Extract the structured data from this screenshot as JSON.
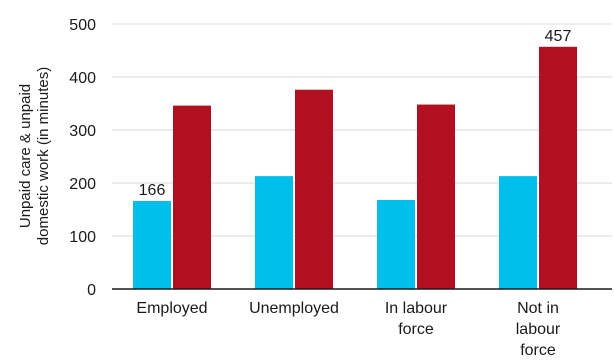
{
  "chart_data": {
    "type": "bar",
    "title": "",
    "xlabel": "",
    "ylabel": "Unpaid care & unpaid domestic work (in minutes)",
    "ylabel_lines": [
      "Unpaid care & unpaid",
      "domestic work (in minutes)"
    ],
    "ylim": [
      0,
      500
    ],
    "yticks": [
      0,
      100,
      200,
      300,
      400,
      500
    ],
    "grid": true,
    "legend": "none",
    "categories": [
      "Employed",
      "Unemployed",
      "In labour force",
      "Not in labour force"
    ],
    "category_lines": [
      [
        "Employed"
      ],
      [
        "Unemployed"
      ],
      [
        "In labour",
        "force"
      ],
      [
        "Not in",
        "labour",
        "force"
      ]
    ],
    "series": [
      {
        "color": "#00bfea",
        "values": [
          166,
          213,
          168,
          213
        ]
      },
      {
        "color": "#b01020",
        "values": [
          346,
          376,
          348,
          457
        ]
      }
    ],
    "data_labels": [
      {
        "series": 0,
        "category": 0,
        "text": "166"
      },
      {
        "series": 1,
        "category": 3,
        "text": "457"
      }
    ]
  }
}
